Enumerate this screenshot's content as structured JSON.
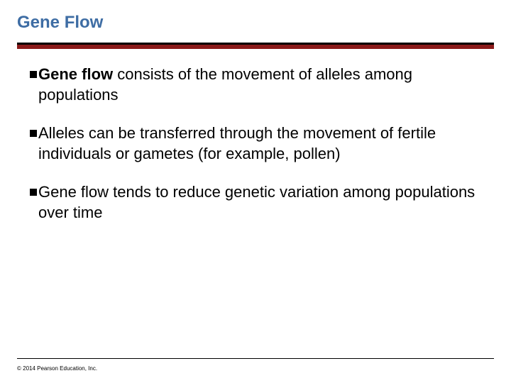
{
  "title": "Gene Flow",
  "title_color": "#3e6da4",
  "rule_colors": {
    "top": "#000000",
    "bottom": "#8a1a1a"
  },
  "bullets": [
    {
      "bold_lead": "Gene flow",
      "rest": " consists of the movement of alleles among populations"
    },
    {
      "bold_lead": "",
      "rest": "Alleles can be transferred through the movement of fertile individuals or gametes (for example, pollen)"
    },
    {
      "bold_lead": "",
      "rest": "Gene flow tends to reduce genetic variation among populations over time"
    }
  ],
  "copyright": "© 2014 Pearson Education, Inc.",
  "fontsize": {
    "title": 24,
    "body": 22,
    "copyright": 8
  },
  "background_color": "#ffffff",
  "text_color": "#000000"
}
